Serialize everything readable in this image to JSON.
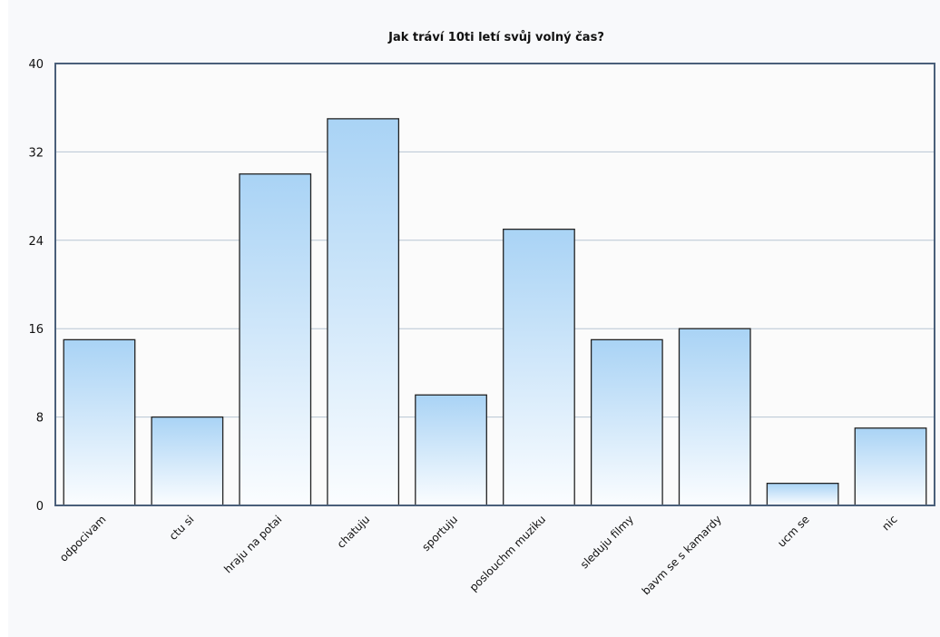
{
  "chart_data": {
    "type": "bar",
    "title": "Jak tráví 10ti letí svůj volný čas?",
    "xlabel": "",
    "ylabel": "",
    "categories": [
      "odpocivam",
      "ctu si",
      "hraju na potai",
      "chatuju",
      "sportuju",
      "poslouchm muziku",
      "sleduju filmy",
      "bavm se s kamardy",
      "ucm se",
      "nic"
    ],
    "values": [
      15,
      8,
      30,
      35,
      10,
      25,
      15,
      16,
      2,
      7
    ],
    "ylim": [
      0,
      40
    ],
    "yticks": [
      "0",
      "8",
      "16",
      "24",
      "32",
      "40"
    ],
    "grid": true,
    "legend": "none",
    "colors": {
      "bar_top": "#a9d3f5",
      "bar_bottom": "#fbfdff",
      "bar_stroke": "#222222",
      "axis": "#4a5f7a",
      "grid": "#b7c5d3",
      "plot_bg": "#fbfbfb"
    }
  }
}
